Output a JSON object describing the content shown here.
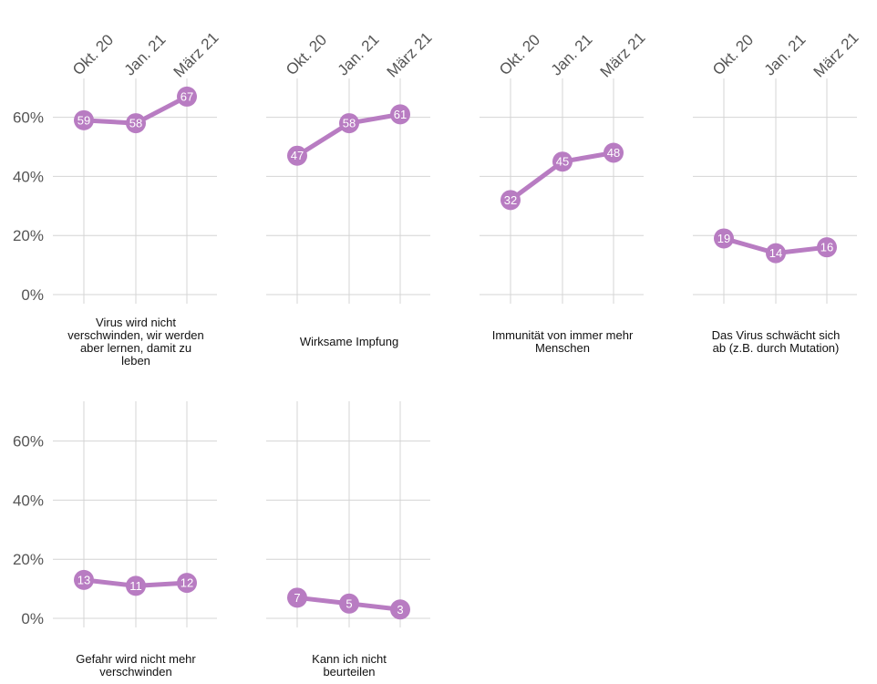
{
  "chart_data": {
    "type": "line",
    "x": [
      "Okt. 20",
      "Jan. 21",
      "März 21"
    ],
    "ylim": [
      0,
      70
    ],
    "y_ticks": [
      0,
      20,
      40,
      60
    ],
    "y_tick_labels": [
      "0%",
      "20%",
      "40%",
      "60%"
    ],
    "grid": true,
    "colors": {
      "series": "#b87cc2",
      "label": "#ffffff",
      "grid": "#d4d4d4"
    },
    "panels": [
      {
        "label_lines": [
          "Virus wird nicht",
          "verschwinden, wir werden",
          "aber lernen, damit zu",
          "leben"
        ],
        "values": [
          59,
          58,
          67
        ]
      },
      {
        "label_lines": [
          "Wirksame Impfung"
        ],
        "values": [
          47,
          58,
          61
        ]
      },
      {
        "label_lines": [
          "Immunität von immer mehr",
          "Menschen"
        ],
        "values": [
          32,
          45,
          48
        ]
      },
      {
        "label_lines": [
          "Das Virus schwächt sich",
          "ab (z.B. durch Mutation)"
        ],
        "values": [
          19,
          14,
          16
        ]
      },
      {
        "label_lines": [
          "Gefahr wird nicht mehr",
          "verschwinden"
        ],
        "values": [
          13,
          11,
          12
        ]
      },
      {
        "label_lines": [
          "Kann ich nicht",
          "beurteilen"
        ],
        "values": [
          7,
          5,
          3
        ]
      }
    ]
  }
}
